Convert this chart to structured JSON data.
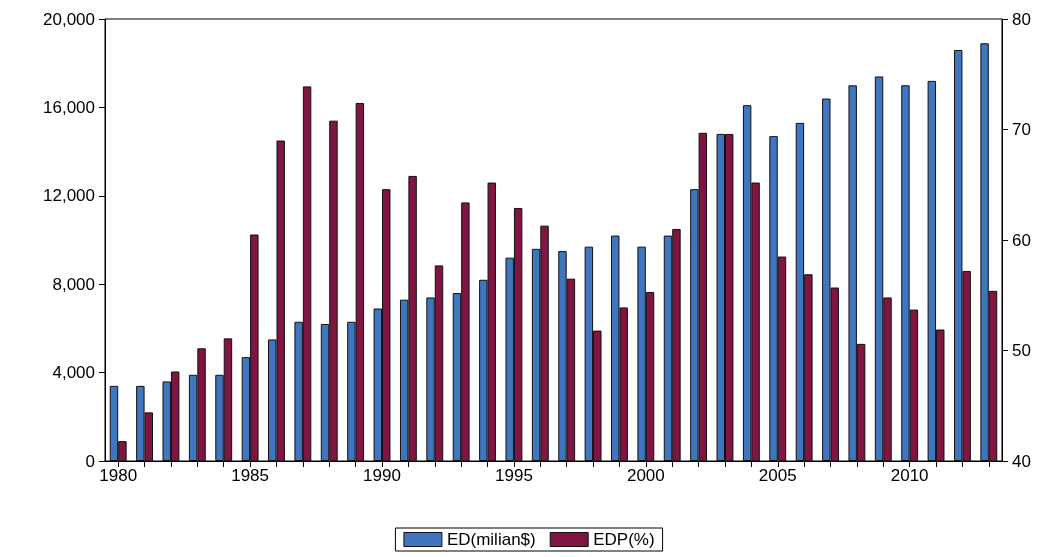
{
  "chart_data": {
    "type": "bar",
    "categories": [
      "1980",
      null,
      null,
      null,
      null,
      "1985",
      null,
      null,
      null,
      null,
      "1990",
      null,
      null,
      null,
      null,
      "1995",
      null,
      null,
      null,
      null,
      "2000",
      null,
      null,
      null,
      null,
      "2005",
      null,
      null,
      null,
      null,
      "2010",
      null,
      null,
      null
    ],
    "series": [
      {
        "name": "ED(milian$)",
        "color": "#3f76bf",
        "values": [
          3400,
          3400,
          3600,
          3900,
          3900,
          4700,
          5500,
          6300,
          6200,
          6300,
          6900,
          7300,
          7400,
          7600,
          8200,
          9200,
          9600,
          9500,
          9700,
          10200,
          9700,
          10200,
          12300,
          14800,
          16100,
          14700,
          15300,
          16400,
          17000,
          17400,
          17000,
          17200,
          18600,
          18900
        ]
      },
      {
        "name": "EDP(%)",
        "color": "#7f1540",
        "axis": "y2",
        "values": [
          41.8,
          44.4,
          48.1,
          50.2,
          51.1,
          60.5,
          69.0,
          73.9,
          70.8,
          72.4,
          64.6,
          65.8,
          57.7,
          63.4,
          65.2,
          62.9,
          61.3,
          56.5,
          51.8,
          53.9,
          55.3,
          61.0,
          69.7,
          69.6,
          65.2,
          58.5,
          56.9,
          55.7,
          50.6,
          54.8,
          53.7,
          51.9,
          57.2,
          55.4
        ]
      }
    ],
    "ylim": [
      0,
      20000
    ],
    "yticks": [
      {
        "value": 0,
        "label": "0"
      },
      {
        "value": 4000,
        "label": "4,000"
      },
      {
        "value": 8000,
        "label": "8,000"
      },
      {
        "value": 12000,
        "label": "12,000"
      },
      {
        "value": 16000,
        "label": "16,000"
      },
      {
        "value": 20000,
        "label": "20,000"
      }
    ],
    "y2lim": [
      40,
      80
    ],
    "y2ticks": [
      40,
      50,
      60,
      70,
      80
    ],
    "grid": false,
    "legend": "bottom"
  }
}
